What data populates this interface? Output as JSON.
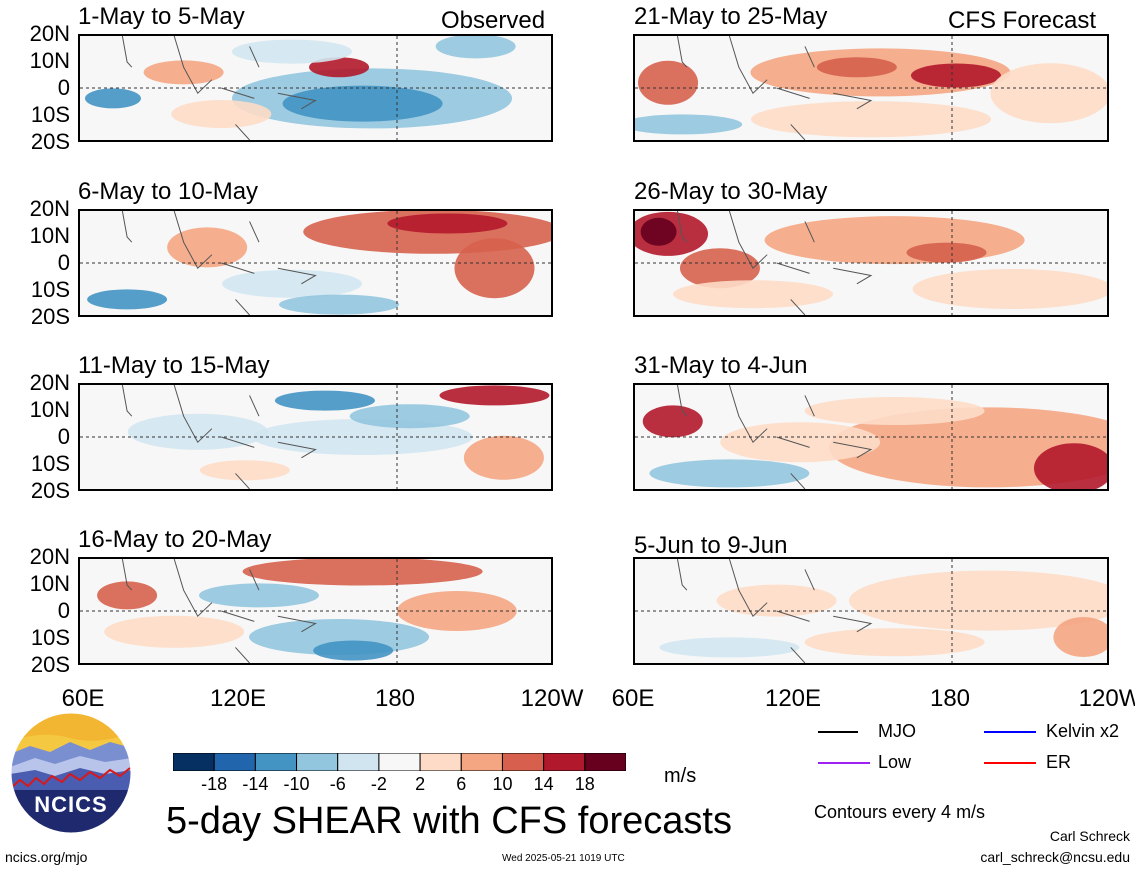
{
  "header_labels": {
    "observed": "Observed",
    "forecast": "CFS Forecast"
  },
  "panels": [
    {
      "title": "1-May to 5-May"
    },
    {
      "title": "6-May to 10-May"
    },
    {
      "title": "11-May to 15-May"
    },
    {
      "title": "16-May to 20-May"
    },
    {
      "title": "21-May to 25-May"
    },
    {
      "title": "26-May to 30-May"
    },
    {
      "title": "31-May to 4-Jun"
    },
    {
      "title": "5-Jun to 9-Jun"
    }
  ],
  "lat_labels": [
    "20N",
    "10N",
    "0",
    "10S",
    "20S"
  ],
  "lon_labels": [
    "60E",
    "120E",
    "180",
    "120W"
  ],
  "colorbar": {
    "colors": [
      "#053061",
      "#2166ac",
      "#4393c3",
      "#92c5de",
      "#d1e5f0",
      "#f7f7f7",
      "#fddbc7",
      "#f4a582",
      "#d6604d",
      "#b2182b",
      "#67001f"
    ],
    "labels": [
      "-18",
      "-14",
      "-10",
      "-6",
      "-2",
      "2",
      "6",
      "10",
      "14",
      "18"
    ],
    "units": "m/s"
  },
  "legend": {
    "items": [
      {
        "label": "MJO",
        "color": "#000000"
      },
      {
        "label": "Kelvin x2",
        "color": "#0000ff"
      },
      {
        "label": "Low",
        "color": "#a020f0"
      },
      {
        "label": "ER",
        "color": "#ff0000"
      }
    ],
    "contours_note": "Contours every 4 m/s"
  },
  "logo_text": "NCICS",
  "main_title": "5-day SHEAR with CFS forecasts",
  "footer": {
    "url": "ncics.org/mjo",
    "timestamp": "Wed 2025-05-21 1019 UTC",
    "author": "Carl Schreck",
    "email": "carl_schreck@ncsu.edu"
  }
}
